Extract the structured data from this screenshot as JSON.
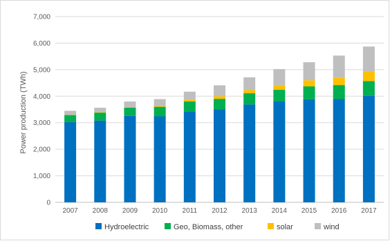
{
  "chart_data": {
    "type": "bar",
    "stacked": true,
    "title": "",
    "xlabel": "",
    "ylabel": "Power production (TWh)",
    "ylim": [
      0,
      7000
    ],
    "yticks": [
      "0",
      "1,000",
      "2,000",
      "3,000",
      "4,000",
      "5,000",
      "6,000",
      "7,000"
    ],
    "grid": true,
    "legend_position": "bottom",
    "categories": [
      "2007",
      "2008",
      "2009",
      "2010",
      "2011",
      "2012",
      "2013",
      "2014",
      "2015",
      "2016",
      "2017"
    ],
    "series": [
      {
        "name": "Hydroelectric",
        "color": "#0070c0",
        "values": [
          3020,
          3080,
          3260,
          3240,
          3430,
          3510,
          3690,
          3810,
          3880,
          3890,
          4010
        ]
      },
      {
        "name": "Geo, Biomass, other",
        "color": "#00b050",
        "values": [
          270,
          300,
          310,
          360,
          370,
          390,
          420,
          430,
          490,
          530,
          560
        ]
      },
      {
        "name": "solar",
        "color": "#ffc000",
        "values": [
          10,
          15,
          20,
          30,
          60,
          100,
          120,
          180,
          230,
          270,
          350
        ]
      },
      {
        "name": "wind",
        "color": "#bfbfbf",
        "values": [
          150,
          170,
          210,
          260,
          310,
          410,
          480,
          600,
          680,
          840,
          950
        ]
      }
    ]
  }
}
